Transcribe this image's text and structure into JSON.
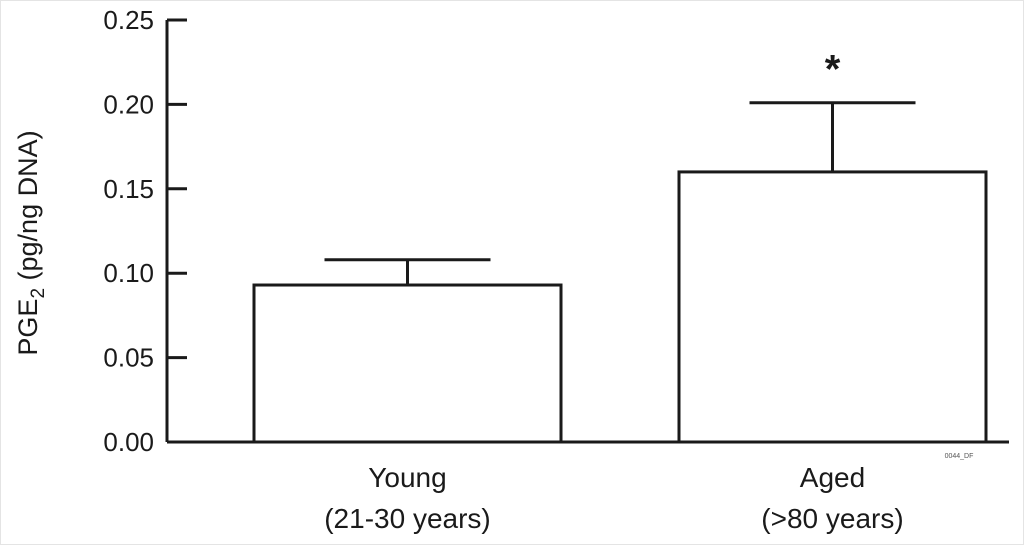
{
  "chart_data": {
    "type": "bar",
    "categories": [
      {
        "line1": "Young",
        "line2": "(21-30 years)"
      },
      {
        "line1": "Aged",
        "line2": "(>80 years)"
      }
    ],
    "values": [
      0.093,
      0.16
    ],
    "error_upper": [
      0.108,
      0.201
    ],
    "annotations": [
      "",
      "*"
    ],
    "ylabel_main": "PGE",
    "ylabel_sub": "2",
    "ylabel_rest": " (pg/ng DNA)",
    "ylim": [
      0,
      0.25
    ],
    "yticks": [
      "0.00",
      "0.05",
      "0.10",
      "0.15",
      "0.20",
      "0.25"
    ],
    "grid": false,
    "figure_code": "0044_DF"
  }
}
